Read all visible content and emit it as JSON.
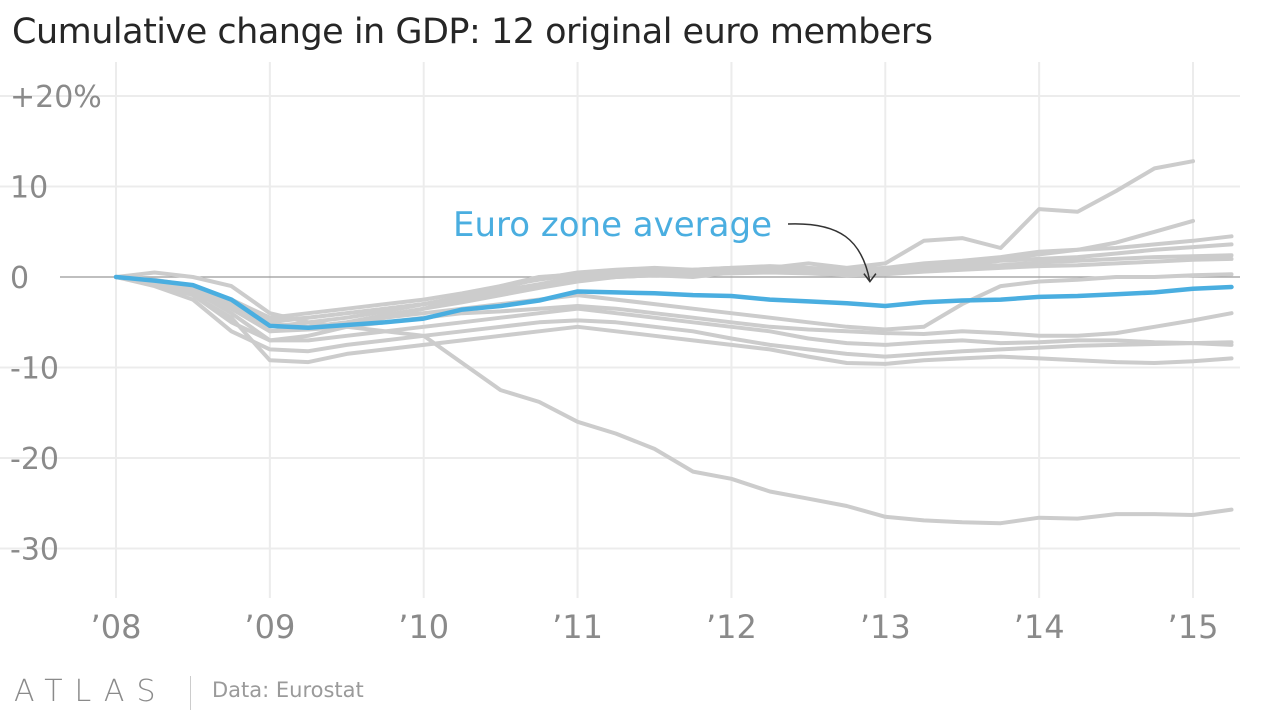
{
  "chart_data": {
    "type": "line",
    "title": "Cumulative change in GDP: 12 original euro members",
    "source": "Data: Eurostat",
    "brand": "ATLAS",
    "x_ticks": [
      "’08",
      "’09",
      "’10",
      "’11",
      "’12",
      "’13",
      "’14",
      "’15"
    ],
    "x_tick_values": [
      2008,
      2009,
      2010,
      2011,
      2012,
      2013,
      2014,
      2015
    ],
    "y_ticks": [
      "+20%",
      "10",
      "0",
      "-10",
      "-20",
      "-30"
    ],
    "y_tick_values": [
      20,
      10,
      0,
      -10,
      -20,
      -30
    ],
    "xlim": [
      2008,
      2015.3
    ],
    "ylim": [
      -33,
      21
    ],
    "annotation": {
      "text": "Euro zone average",
      "points_to": [
        2012.9,
        -2.5
      ]
    },
    "colors": {
      "highlight": "#4aaee0",
      "other": "#cccccc",
      "zero_line": "#999999",
      "grid": "#ececec"
    },
    "series": [
      {
        "highlight": false,
        "x": [
          2008,
          2008.25,
          2008.5,
          2008.75,
          2009,
          2009.25,
          2009.5,
          2009.75,
          2010,
          2010.25,
          2010.5,
          2010.75,
          2011,
          2011.25,
          2011.5,
          2011.75,
          2012,
          2012.25,
          2012.5,
          2012.75,
          2013,
          2013.25,
          2013.5,
          2013.75,
          2014,
          2014.25,
          2014.5,
          2014.75,
          2015
        ],
        "y": [
          0,
          -0.5,
          -1.5,
          -4,
          -7,
          -6.5,
          -5.5,
          -4.5,
          -3.5,
          -2.5,
          -1,
          0,
          0.3,
          0.5,
          0.2,
          0,
          0.5,
          1,
          1.5,
          1,
          1.5,
          4,
          4.3,
          3.2,
          7.5,
          7.2,
          9.5,
          12,
          12.8
        ]
      },
      {
        "highlight": false,
        "x": [
          2008,
          2008.25,
          2008.5,
          2008.75,
          2009,
          2009.25,
          2009.5,
          2009.75,
          2010,
          2010.25,
          2010.5,
          2010.75,
          2011,
          2011.25,
          2011.5,
          2011.75,
          2012,
          2012.25,
          2012.5,
          2012.75,
          2013,
          2013.25,
          2013.5,
          2013.75,
          2014,
          2014.25,
          2014.5,
          2014.75,
          2015
        ],
        "y": [
          0,
          -0.8,
          -1.8,
          -3.5,
          -6,
          -5.5,
          -5,
          -4.2,
          -3.5,
          -2.8,
          -2,
          -1.2,
          -0.5,
          0,
          0.2,
          0.3,
          0.5,
          0.6,
          0.8,
          0.5,
          0.8,
          1.2,
          1.5,
          2,
          2.5,
          3,
          3.8,
          5,
          6.2
        ]
      },
      {
        "highlight": false,
        "x": [
          2008,
          2008.25,
          2008.5,
          2008.75,
          2009,
          2009.25,
          2009.5,
          2009.75,
          2010,
          2010.25,
          2010.5,
          2010.75,
          2011,
          2011.25,
          2011.5,
          2011.75,
          2012,
          2012.25,
          2012.5,
          2012.75,
          2013,
          2013.25,
          2013.5,
          2013.75,
          2014,
          2014.25,
          2014.5,
          2014.75,
          2015,
          2015.25
        ],
        "y": [
          0,
          -0.5,
          -1.2,
          -3,
          -5.5,
          -5,
          -4.5,
          -3.8,
          -3,
          -2.2,
          -1.2,
          -0.2,
          0.5,
          0.8,
          1,
          0.8,
          1,
          1.2,
          1,
          0.8,
          1,
          1.5,
          1.8,
          2.2,
          2.8,
          3,
          3.2,
          3.6,
          4,
          4.5
        ]
      },
      {
        "highlight": false,
        "x": [
          2008,
          2008.25,
          2008.5,
          2008.75,
          2009,
          2009.25,
          2009.5,
          2009.75,
          2010,
          2010.25,
          2010.5,
          2010.75,
          2011,
          2011.25,
          2011.5,
          2011.75,
          2012,
          2012.25,
          2012.5,
          2012.75,
          2013,
          2013.25,
          2013.5,
          2013.75,
          2014,
          2014.25,
          2014.5,
          2014.75,
          2015,
          2015.25
        ],
        "y": [
          0,
          -0.3,
          -1,
          -2.5,
          -4.5,
          -4,
          -3.5,
          -3,
          -2.5,
          -1.8,
          -1,
          -0.3,
          0.3,
          0.5,
          0.7,
          0.8,
          1,
          1,
          0.9,
          0.7,
          0.5,
          1,
          1.2,
          1.8,
          2,
          2.2,
          2.6,
          3,
          3.3,
          3.6
        ]
      },
      {
        "highlight": false,
        "x": [
          2008,
          2008.25,
          2008.5,
          2008.75,
          2009,
          2009.25,
          2009.5,
          2009.75,
          2010,
          2010.25,
          2010.5,
          2010.75,
          2011,
          2011.25,
          2011.5,
          2011.75,
          2012,
          2012.25,
          2012.5,
          2012.75,
          2013,
          2013.25,
          2013.5,
          2013.75,
          2014,
          2014.25,
          2014.5,
          2014.75,
          2015,
          2015.25
        ],
        "y": [
          0,
          -0.6,
          -1.5,
          -3.2,
          -5,
          -4.5,
          -4,
          -3.5,
          -3,
          -2.2,
          -1.5,
          -0.8,
          0,
          0.3,
          0.5,
          0.6,
          0.8,
          0.7,
          0.5,
          0.3,
          0.5,
          0.8,
          1,
          1.3,
          1.6,
          1.8,
          2,
          2.2,
          2.3,
          2.4
        ]
      },
      {
        "highlight": false,
        "x": [
          2008,
          2008.25,
          2008.5,
          2008.75,
          2009,
          2009.25,
          2009.5,
          2009.75,
          2010,
          2010.25,
          2010.5,
          2010.75,
          2011,
          2011.25,
          2011.5,
          2011.75,
          2012,
          2012.25,
          2012.5,
          2012.75,
          2013,
          2013.25,
          2013.5,
          2013.75,
          2014,
          2014.25,
          2014.5,
          2014.75,
          2015,
          2015.25
        ],
        "y": [
          0,
          -0.4,
          -1.2,
          -2.8,
          -4.8,
          -4.5,
          -4,
          -3.5,
          -3,
          -2.5,
          -1.8,
          -1,
          -0.3,
          0,
          0.2,
          0.3,
          0.4,
          0.5,
          0.4,
          0.2,
          0.3,
          0.6,
          0.8,
          1,
          1.2,
          1.3,
          1.5,
          1.7,
          1.9,
          2
        ]
      },
      {
        "highlight": false,
        "x": [
          2008,
          2008.25,
          2008.5,
          2008.75,
          2009,
          2009.25,
          2009.5,
          2009.75,
          2010,
          2010.25,
          2010.5,
          2010.75,
          2011,
          2011.25,
          2011.5,
          2011.75,
          2012,
          2012.25,
          2012.5,
          2012.75,
          2013,
          2013.25,
          2013.5,
          2013.75,
          2014,
          2014.25,
          2014.5,
          2014.75,
          2015,
          2015.25
        ],
        "y": [
          0,
          -0.5,
          -1.5,
          -3,
          -5.2,
          -5.5,
          -5,
          -4.5,
          -4,
          -3.5,
          -3,
          -2.5,
          -2,
          -2.5,
          -3,
          -3.5,
          -4,
          -4.5,
          -5,
          -5.5,
          -5.8,
          -5.5,
          -3,
          -1,
          -0.5,
          -0.3,
          0,
          0,
          0.2,
          0.3
        ]
      },
      {
        "highlight": false,
        "x": [
          2008,
          2008.25,
          2008.5,
          2008.75,
          2009,
          2009.25,
          2009.5,
          2009.75,
          2010,
          2010.25,
          2010.5,
          2010.75,
          2011,
          2011.25,
          2011.5,
          2011.75,
          2012,
          2012.25,
          2012.5,
          2012.75,
          2013,
          2013.25,
          2013.5,
          2013.75,
          2014,
          2014.25,
          2014.5,
          2014.75,
          2015,
          2015.25
        ],
        "y": [
          0,
          -0.5,
          -1.5,
          -3.5,
          -6,
          -5.8,
          -5.5,
          -5,
          -4.5,
          -4,
          -3.8,
          -3.5,
          -3.2,
          -3.5,
          -4,
          -4.5,
          -5,
          -5.5,
          -5.8,
          -6,
          -6.2,
          -6.3,
          -6,
          -6.2,
          -6.5,
          -6.5,
          -6.2,
          -5.5,
          -4.8,
          -4
        ]
      },
      {
        "highlight": false,
        "x": [
          2008,
          2008.25,
          2008.5,
          2008.75,
          2009,
          2009.25,
          2009.5,
          2009.75,
          2010,
          2010.25,
          2010.5,
          2010.75,
          2011,
          2011.25,
          2011.5,
          2011.75,
          2012,
          2012.25,
          2012.5,
          2012.75,
          2013,
          2013.25,
          2013.5,
          2013.75,
          2014,
          2014.25,
          2014.5,
          2014.75,
          2015,
          2015.25
        ],
        "y": [
          0,
          -0.8,
          -2,
          -5,
          -7,
          -7,
          -6.5,
          -6,
          -5.5,
          -5,
          -4.5,
          -4,
          -3.5,
          -4,
          -4.5,
          -5,
          -5.5,
          -6,
          -6.8,
          -7.3,
          -7.5,
          -7.2,
          -7,
          -7.3,
          -7.2,
          -7,
          -7,
          -7.2,
          -7.3,
          -7.5
        ]
      },
      {
        "highlight": false,
        "x": [
          2008,
          2008.25,
          2008.5,
          2008.75,
          2009,
          2009.25,
          2009.5,
          2009.75,
          2010,
          2010.25,
          2010.5,
          2010.75,
          2011,
          2011.25,
          2011.5,
          2011.75,
          2012,
          2012.25,
          2012.5,
          2012.75,
          2013,
          2013.25,
          2013.5,
          2013.75,
          2014,
          2014.25,
          2014.5,
          2014.75,
          2015,
          2015.25
        ],
        "y": [
          0,
          -1,
          -2.5,
          -6,
          -8,
          -8.2,
          -7.5,
          -7,
          -6.5,
          -6,
          -5.5,
          -5,
          -4.8,
          -5,
          -5.5,
          -6,
          -6.8,
          -7.5,
          -8,
          -8.5,
          -8.8,
          -8.5,
          -8.2,
          -8,
          -7.8,
          -7.6,
          -7.5,
          -7.4,
          -7.3,
          -7.2
        ]
      },
      {
        "highlight": false,
        "x": [
          2008,
          2008.25,
          2008.5,
          2008.75,
          2009,
          2009.25,
          2009.5,
          2009.75,
          2010,
          2010.25,
          2010.5,
          2010.75,
          2011,
          2011.25,
          2011.5,
          2011.75,
          2012,
          2012.25,
          2012.5,
          2012.75,
          2013,
          2013.25,
          2013.5,
          2013.75,
          2014,
          2014.25,
          2014.5,
          2014.75,
          2015,
          2015.25
        ],
        "y": [
          0,
          -0.6,
          -2,
          -4.5,
          -9.2,
          -9.4,
          -8.5,
          -8,
          -7.5,
          -7,
          -6.5,
          -6,
          -5.5,
          -6,
          -6.5,
          -7,
          -7.5,
          -8,
          -8.8,
          -9.5,
          -9.6,
          -9.2,
          -9,
          -8.8,
          -9,
          -9.2,
          -9.4,
          -9.5,
          -9.3,
          -9
        ]
      },
      {
        "highlight": false,
        "x": [
          2008,
          2008.25,
          2008.5,
          2008.75,
          2009,
          2009.25,
          2009.5,
          2009.75,
          2010,
          2010.25,
          2010.5,
          2010.75,
          2011,
          2011.25,
          2011.5,
          2011.75,
          2012,
          2012.25,
          2012.5,
          2012.75,
          2013,
          2013.25,
          2013.5,
          2013.75,
          2014,
          2014.25,
          2014.5,
          2014.75,
          2015,
          2015.25
        ],
        "y": [
          0,
          0.5,
          0,
          -1,
          -4,
          -5,
          -5.5,
          -6,
          -6.5,
          -9.5,
          -12.5,
          -13.8,
          -16,
          -17.3,
          -19,
          -21.5,
          -22.3,
          -23.7,
          -24.5,
          -25.3,
          -26.5,
          -26.9,
          -27.1,
          -27.2,
          -26.6,
          -26.7,
          -26.2,
          -26.2,
          -26.3,
          -25.7
        ]
      },
      {
        "highlight": true,
        "name": "Euro zone average",
        "x": [
          2008,
          2008.25,
          2008.5,
          2008.75,
          2009,
          2009.25,
          2009.5,
          2009.75,
          2010,
          2010.25,
          2010.5,
          2010.75,
          2011,
          2011.25,
          2011.5,
          2011.75,
          2012,
          2012.25,
          2012.5,
          2012.75,
          2013,
          2013.25,
          2013.5,
          2013.75,
          2014,
          2014.25,
          2014.5,
          2014.75,
          2015,
          2015.25
        ],
        "y": [
          0,
          -0.4,
          -0.9,
          -2.5,
          -5.4,
          -5.6,
          -5.3,
          -5,
          -4.6,
          -3.6,
          -3.2,
          -2.6,
          -1.6,
          -1.7,
          -1.8,
          -2,
          -2.1,
          -2.5,
          -2.7,
          -2.9,
          -3.2,
          -2.8,
          -2.6,
          -2.5,
          -2.2,
          -2.1,
          -1.9,
          -1.7,
          -1.3,
          -1.1
        ]
      }
    ]
  }
}
